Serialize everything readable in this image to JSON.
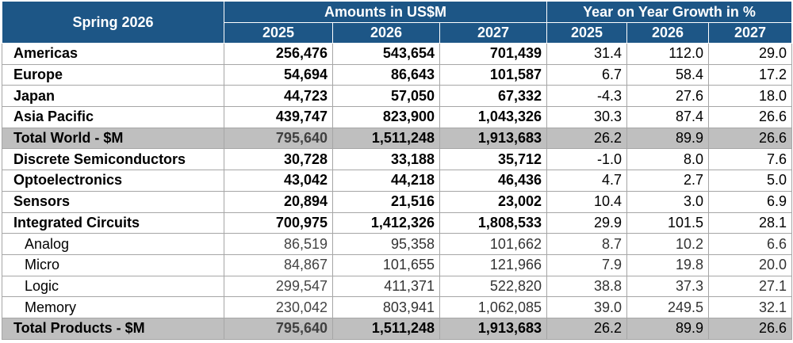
{
  "header": {
    "title": "Spring 2026",
    "amounts_label": "Amounts in US$M",
    "growth_label": "Year on Year Growth in %",
    "years_amounts": [
      "2025",
      "2026",
      "2027"
    ],
    "years_growth": [
      "2025",
      "2026",
      "2027"
    ]
  },
  "rows": [
    {
      "label": "Americas",
      "values": [
        "256,476",
        "543,654",
        "701,439",
        "31.4",
        "112.0",
        "29.0"
      ]
    },
    {
      "label": "Europe",
      "values": [
        "54,694",
        "86,643",
        "101,587",
        "6.7",
        "58.4",
        "17.2"
      ]
    },
    {
      "label": "Japan",
      "values": [
        "44,723",
        "57,050",
        "67,332",
        "-4.3",
        "27.6",
        "18.0"
      ]
    },
    {
      "label": "Asia Pacific",
      "values": [
        "439,747",
        "823,900",
        "1,043,326",
        "30.3",
        "87.4",
        "26.6"
      ]
    },
    {
      "label": "Total World - $M",
      "values": [
        "795,640",
        "1,511,248",
        "1,913,683",
        "26.2",
        "89.9",
        "26.6"
      ]
    },
    {
      "label": "Discrete Semiconductors",
      "values": [
        "30,728",
        "33,188",
        "35,712",
        "-1.0",
        "8.0",
        "7.6"
      ]
    },
    {
      "label": "Optoelectronics",
      "values": [
        "43,042",
        "44,218",
        "46,436",
        "4.7",
        "2.7",
        "5.0"
      ]
    },
    {
      "label": "Sensors",
      "values": [
        "20,894",
        "21,516",
        "23,002",
        "10.4",
        "3.0",
        "6.9"
      ]
    },
    {
      "label": "Integrated Circuits",
      "values": [
        "700,975",
        "1,412,326",
        "1,808,533",
        "29.9",
        "101.5",
        "28.1"
      ]
    },
    {
      "label": "Analog",
      "values": [
        "86,519",
        "95,358",
        "101,662",
        "8.7",
        "10.2",
        "6.6"
      ]
    },
    {
      "label": "Micro",
      "values": [
        "84,867",
        "101,655",
        "121,966",
        "7.9",
        "19.8",
        "20.0"
      ]
    },
    {
      "label": "Logic",
      "values": [
        "299,547",
        "411,371",
        "522,820",
        "38.8",
        "37.3",
        "27.1"
      ]
    },
    {
      "label": "Memory",
      "values": [
        "230,042",
        "803,941",
        "1,062,085",
        "39.0",
        "249.5",
        "32.1"
      ]
    },
    {
      "label": "Total Products - $M",
      "values": [
        "795,640",
        "1,511,248",
        "1,913,683",
        "26.2",
        "89.9",
        "26.6"
      ]
    }
  ]
}
